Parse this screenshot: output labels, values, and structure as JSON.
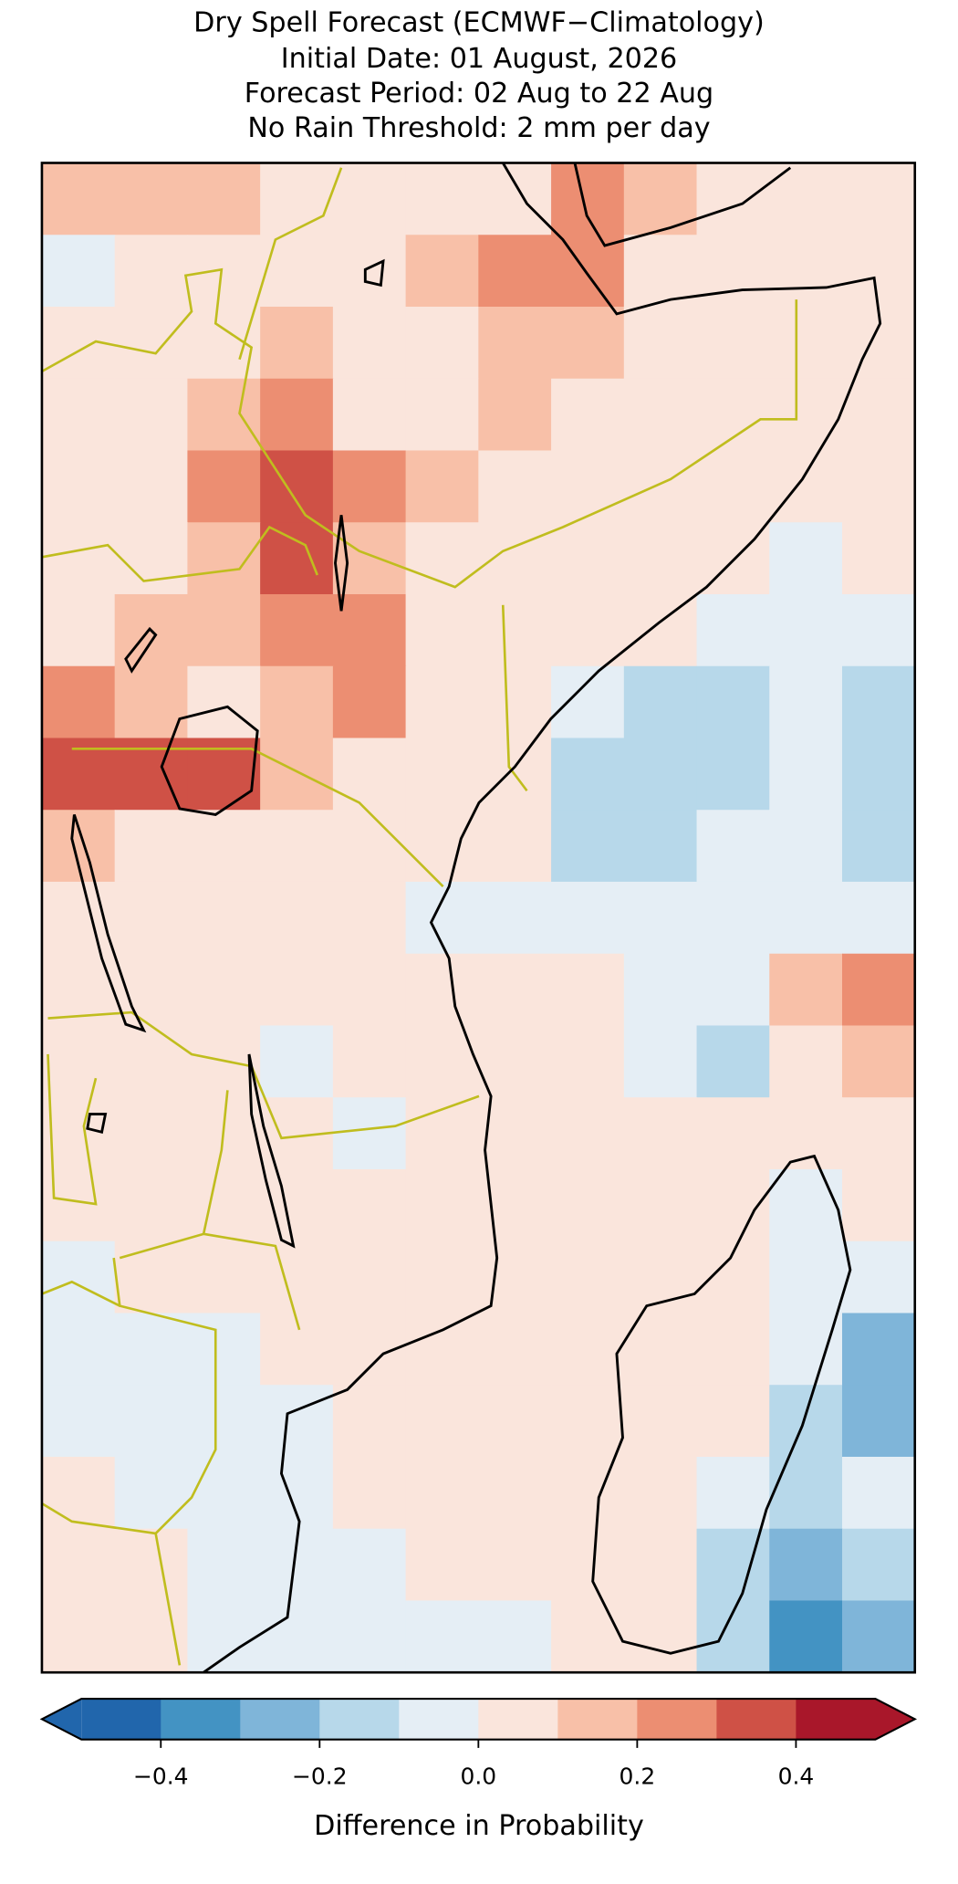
{
  "chart_data": {
    "type": "map",
    "title": [
      "Dry Spell Forecast (ECMWF−Climatology)",
      "Initial Date: 01 August, 2026",
      "Forecast Period: 02 Aug to 22 Aug",
      "No Rain Threshold: 2 mm per day"
    ],
    "grid": {
      "values": [
        [
          0.15,
          0.15,
          0.15,
          0.05,
          0.05,
          0.05,
          0.05,
          0.25,
          0.15,
          0.05,
          0.05,
          0.05
        ],
        [
          -0.05,
          0.05,
          0.05,
          0.05,
          0.05,
          0.15,
          0.25,
          0.25,
          0.05,
          0.05,
          0.05,
          0.05
        ],
        [
          0.05,
          0.05,
          0.05,
          0.15,
          0.05,
          0.05,
          0.15,
          0.15,
          0.05,
          0.05,
          0.05,
          0.05
        ],
        [
          0.05,
          0.05,
          0.15,
          0.25,
          0.05,
          0.05,
          0.15,
          0.05,
          0.05,
          0.05,
          0.05,
          0.05
        ],
        [
          0.05,
          0.05,
          0.25,
          0.35,
          0.25,
          0.15,
          0.05,
          0.05,
          0.05,
          0.05,
          0.05,
          0.05
        ],
        [
          0.05,
          0.05,
          0.15,
          0.35,
          0.15,
          0.05,
          0.05,
          0.05,
          0.05,
          0.05,
          -0.05,
          0.05
        ],
        [
          0.05,
          0.15,
          0.15,
          0.25,
          0.25,
          0.05,
          0.05,
          0.05,
          0.05,
          -0.05,
          -0.05,
          -0.05
        ],
        [
          0.25,
          0.15,
          0.05,
          0.15,
          0.25,
          0.05,
          0.05,
          -0.05,
          -0.15,
          -0.15,
          -0.05,
          -0.15
        ],
        [
          0.35,
          0.35,
          0.35,
          0.15,
          0.05,
          0.05,
          0.05,
          -0.15,
          -0.15,
          -0.15,
          -0.05,
          -0.15
        ],
        [
          0.15,
          0.05,
          0.05,
          0.05,
          0.05,
          0.05,
          0.05,
          -0.15,
          -0.15,
          -0.05,
          -0.05,
          -0.15
        ],
        [
          0.05,
          0.05,
          0.05,
          0.05,
          0.05,
          -0.05,
          -0.05,
          -0.05,
          -0.05,
          -0.05,
          -0.05,
          -0.05
        ],
        [
          0.05,
          0.05,
          0.05,
          0.05,
          0.05,
          0.05,
          0.05,
          0.05,
          -0.05,
          -0.05,
          0.15,
          0.25
        ],
        [
          0.05,
          0.05,
          0.05,
          -0.05,
          0.05,
          0.05,
          0.05,
          0.05,
          -0.05,
          -0.15,
          0.05,
          0.15
        ],
        [
          0.05,
          0.05,
          0.05,
          0.05,
          -0.05,
          0.05,
          0.05,
          0.05,
          0.05,
          0.05,
          0.05,
          0.05
        ],
        [
          0.05,
          0.05,
          0.05,
          0.05,
          0.05,
          0.05,
          0.05,
          0.05,
          0.05,
          0.05,
          -0.05,
          0.05
        ],
        [
          -0.05,
          0.05,
          0.05,
          0.05,
          0.05,
          0.05,
          0.05,
          0.05,
          0.05,
          0.05,
          -0.05,
          -0.05
        ],
        [
          -0.05,
          -0.05,
          -0.05,
          0.05,
          0.05,
          0.05,
          0.05,
          0.05,
          0.05,
          0.05,
          -0.05,
          -0.25
        ],
        [
          -0.05,
          -0.05,
          -0.05,
          -0.05,
          0.05,
          0.05,
          0.05,
          0.05,
          0.05,
          0.05,
          -0.15,
          -0.25
        ],
        [
          0.05,
          -0.05,
          -0.05,
          -0.05,
          0.05,
          0.05,
          0.05,
          0.05,
          0.05,
          -0.05,
          -0.15,
          -0.05
        ],
        [
          0.05,
          0.05,
          -0.05,
          -0.05,
          -0.05,
          0.05,
          0.05,
          0.05,
          0.05,
          -0.15,
          -0.25,
          -0.15
        ],
        [
          0.05,
          0.05,
          -0.05,
          -0.05,
          -0.05,
          -0.05,
          -0.05,
          0.05,
          0.05,
          -0.15,
          -0.35,
          -0.25
        ]
      ]
    },
    "colorbar": {
      "label": "Difference in Probability",
      "levels": [
        -0.5,
        -0.4,
        -0.3,
        -0.2,
        -0.1,
        0,
        0.1,
        0.2,
        0.3,
        0.4,
        0.5
      ],
      "colors": [
        "#2166ac",
        "#4393c3",
        "#7fb5d9",
        "#b7d8ea",
        "#e5eef5",
        "#fae5dc",
        "#f8c0a8",
        "#ec8e72",
        "#cf5146",
        "#a9172a"
      ],
      "under_color": "#2166ac",
      "over_color": "#a9172a",
      "ticks": [
        {
          "value": -0.4,
          "label": "−0.4"
        },
        {
          "value": -0.2,
          "label": "−0.2"
        },
        {
          "value": 0,
          "label": "0.0"
        },
        0.2,
        0.4
      ]
    }
  }
}
